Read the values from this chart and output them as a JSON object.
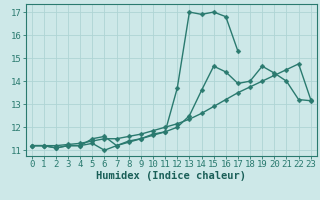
{
  "series": [
    {
      "name": "line1_peak",
      "x": [
        0,
        1,
        2,
        3,
        4,
        5,
        6,
        7,
        8,
        9,
        10,
        11,
        12,
        13,
        14,
        15,
        16,
        17
      ],
      "y": [
        11.2,
        11.2,
        11.1,
        11.2,
        11.2,
        11.5,
        11.6,
        11.2,
        11.4,
        11.5,
        11.7,
        11.8,
        13.7,
        17.0,
        16.9,
        17.0,
        16.8,
        15.3
      ],
      "color": "#2a7a6f",
      "linewidth": 1.0,
      "marker": "D",
      "markersize": 2.5
    },
    {
      "name": "line2_gradual",
      "x": [
        0,
        1,
        2,
        3,
        4,
        5,
        6,
        7,
        8,
        9,
        10,
        11,
        12,
        13,
        14,
        15,
        16,
        17,
        18,
        19,
        20,
        21,
        22,
        23
      ],
      "y": [
        11.2,
        11.2,
        11.2,
        11.25,
        11.3,
        11.4,
        11.5,
        11.5,
        11.6,
        11.7,
        11.85,
        12.0,
        12.15,
        12.35,
        12.6,
        12.9,
        13.2,
        13.5,
        13.75,
        14.0,
        14.25,
        14.5,
        14.75,
        13.2
      ],
      "color": "#2a7a6f",
      "linewidth": 1.0,
      "marker": "D",
      "markersize": 2.5
    },
    {
      "name": "line3_dip",
      "x": [
        0,
        1,
        2,
        3,
        4,
        5,
        6,
        7,
        8,
        9,
        10,
        11,
        12,
        13,
        14,
        15,
        16,
        17,
        18,
        19,
        20,
        21,
        22,
        23
      ],
      "y": [
        11.2,
        11.2,
        11.1,
        11.2,
        11.2,
        11.3,
        11.0,
        11.2,
        11.35,
        11.5,
        11.65,
        11.8,
        12.0,
        12.5,
        13.6,
        14.65,
        14.4,
        13.9,
        14.0,
        14.65,
        14.35,
        14.0,
        13.2,
        13.15
      ],
      "color": "#2a7a6f",
      "linewidth": 1.0,
      "marker": "D",
      "markersize": 2.5
    }
  ],
  "xlim": [
    -0.5,
    23.5
  ],
  "ylim": [
    10.75,
    17.35
  ],
  "xticks": [
    0,
    1,
    2,
    3,
    4,
    5,
    6,
    7,
    8,
    9,
    10,
    11,
    12,
    13,
    14,
    15,
    16,
    17,
    18,
    19,
    20,
    21,
    22,
    23
  ],
  "yticks": [
    11,
    12,
    13,
    14,
    15,
    16,
    17
  ],
  "xlabel": "Humidex (Indice chaleur)",
  "background_color": "#cde8e8",
  "grid_color": "#afd4d4",
  "axis_color": "#2a7a6f",
  "tick_color": "#2a7a6f",
  "label_color": "#1a5f58",
  "tick_fontsize": 6.5,
  "xlabel_fontsize": 7.5
}
